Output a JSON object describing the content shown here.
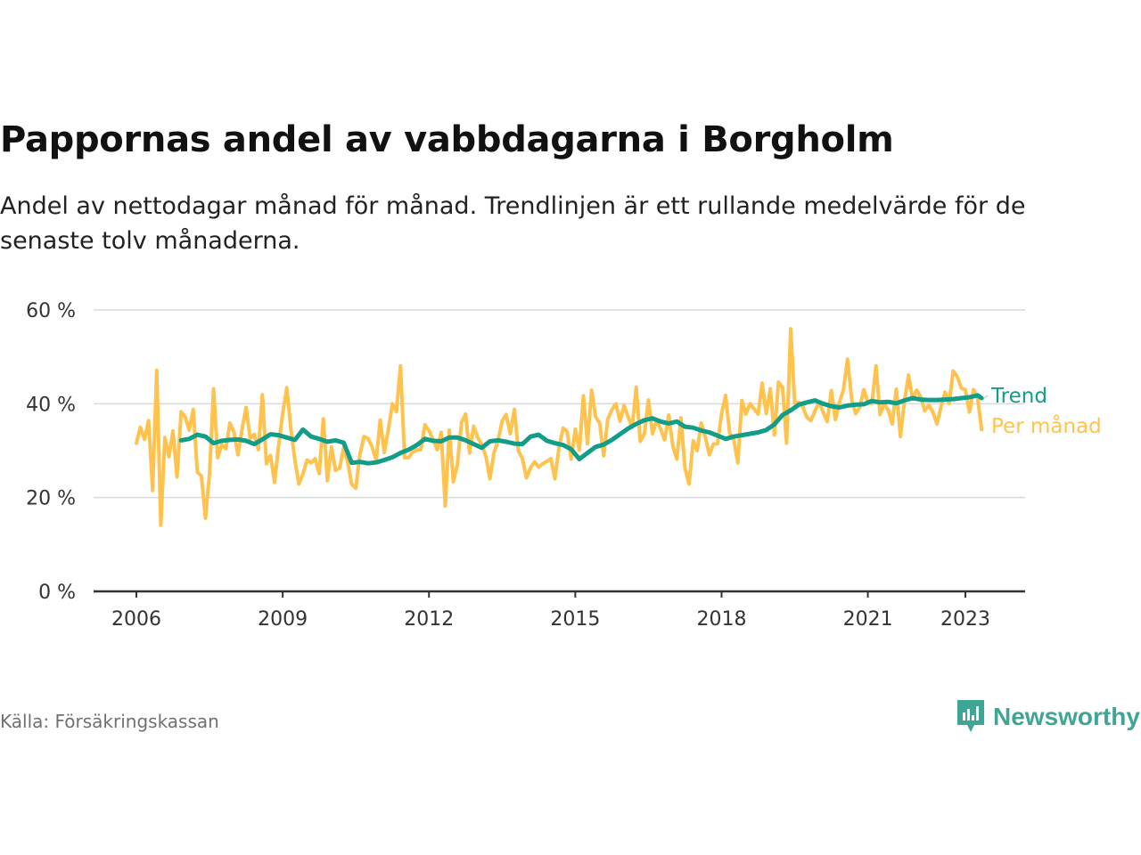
{
  "title": "Pappornas andel av vabbdagarna i Borgholm",
  "subtitle": "Andel av nettodagar månad för månad. Trendlinjen är ett rullande medelvärde för de senaste tolv månaderna.",
  "source": "Källa: Försäkringskassan",
  "brand": {
    "name": "Newsworthy",
    "icon": "newsworthy-logo-icon",
    "color": "#3fa594"
  },
  "chart_data": {
    "type": "line",
    "x_unit": "year",
    "xlim": [
      2006,
      2023.5
    ],
    "ylim": [
      0,
      60
    ],
    "y_ticks": [
      0,
      20,
      40,
      60
    ],
    "y_tick_labels": [
      "0 %",
      "20 %",
      "40 %",
      "60 %"
    ],
    "x_ticks": [
      2006,
      2009,
      2012,
      2015,
      2018,
      2021,
      2023
    ],
    "x_tick_labels": [
      "2006",
      "2009",
      "2012",
      "2015",
      "2018",
      "2021",
      "2023"
    ],
    "grid": true,
    "series": [
      {
        "name": "Per månad",
        "color": "#ffc24d",
        "x": [
          2006.0,
          2006.083,
          2006.167,
          2006.25,
          2006.333,
          2006.417,
          2006.5,
          2006.583,
          2006.667,
          2006.75,
          2006.833,
          2006.917,
          2007.0,
          2007.083,
          2007.167,
          2007.25,
          2007.333,
          2007.417,
          2007.5,
          2007.583,
          2007.667,
          2007.75,
          2007.833,
          2007.917,
          2008.0,
          2008.083,
          2008.167,
          2008.25,
          2008.333,
          2008.417,
          2008.5,
          2008.583,
          2008.667,
          2008.75,
          2008.833,
          2008.917,
          2009.0,
          2009.083,
          2009.167,
          2009.25,
          2009.333,
          2009.417,
          2009.5,
          2009.583,
          2009.667,
          2009.75,
          2009.833,
          2009.917,
          2010.0,
          2010.083,
          2010.167,
          2010.25,
          2010.333,
          2010.417,
          2010.5,
          2010.583,
          2010.667,
          2010.75,
          2010.833,
          2010.917,
          2011.0,
          2011.083,
          2011.167,
          2011.25,
          2011.333,
          2011.417,
          2011.5,
          2011.583,
          2011.667,
          2011.75,
          2011.833,
          2011.917,
          2012.0,
          2012.083,
          2012.167,
          2012.25,
          2012.333,
          2012.417,
          2012.5,
          2012.583,
          2012.667,
          2012.75,
          2012.833,
          2012.917,
          2013.0,
          2013.083,
          2013.167,
          2013.25,
          2013.333,
          2013.417,
          2013.5,
          2013.583,
          2013.667,
          2013.75,
          2013.833,
          2013.917,
          2014.0,
          2014.083,
          2014.167,
          2014.25,
          2014.333,
          2014.417,
          2014.5,
          2014.583,
          2014.667,
          2014.75,
          2014.833,
          2014.917,
          2015.0,
          2015.083,
          2015.167,
          2015.25,
          2015.333,
          2015.417,
          2015.5,
          2015.583,
          2015.667,
          2015.75,
          2015.833,
          2015.917,
          2016.0,
          2016.083,
          2016.167,
          2016.25,
          2016.333,
          2016.417,
          2016.5,
          2016.583,
          2016.667,
          2016.75,
          2016.833,
          2016.917,
          2017.0,
          2017.083,
          2017.167,
          2017.25,
          2017.333,
          2017.417,
          2017.5,
          2017.583,
          2017.667,
          2017.75,
          2017.833,
          2017.917,
          2018.0,
          2018.083,
          2018.167,
          2018.25,
          2018.333,
          2018.417,
          2018.5,
          2018.583,
          2018.667,
          2018.75,
          2018.833,
          2018.917,
          2019.0,
          2019.083,
          2019.167,
          2019.25,
          2019.333,
          2019.417,
          2019.5,
          2019.583,
          2019.667,
          2019.75,
          2019.833,
          2019.917,
          2020.0,
          2020.083,
          2020.167,
          2020.25,
          2020.333,
          2020.417,
          2020.5,
          2020.583,
          2020.667,
          2020.75,
          2020.833,
          2020.917,
          2021.0,
          2021.083,
          2021.167,
          2021.25,
          2021.333,
          2021.417,
          2021.5,
          2021.583,
          2021.667,
          2021.75,
          2021.833,
          2021.917,
          2022.0,
          2022.083,
          2022.167,
          2022.25,
          2022.333,
          2022.417,
          2022.5,
          2022.583,
          2022.667,
          2022.75,
          2022.833,
          2022.917,
          2023.0,
          2023.083,
          2023.167,
          2023.25,
          2023.333
        ],
        "values": [
          31.6,
          35.0,
          32.4,
          36.4,
          21.5,
          47.1,
          14.1,
          32.8,
          28.7,
          34.2,
          24.4,
          38.3,
          37.2,
          34.4,
          38.8,
          25.4,
          24.6,
          15.6,
          25.3,
          43.2,
          28.5,
          31.3,
          30.4,
          35.9,
          34.0,
          29.1,
          34.5,
          39.2,
          32.6,
          33.5,
          30.2,
          41.9,
          27.2,
          29.0,
          23.2,
          31.2,
          37.9,
          43.4,
          34.6,
          28.0,
          22.9,
          25.1,
          28.0,
          27.4,
          28.3,
          25.1,
          36.8,
          23.6,
          30.8,
          25.8,
          26.3,
          30.6,
          27.6,
          22.8,
          22.0,
          29.2,
          33.0,
          32.6,
          30.8,
          28.0,
          36.5,
          29.6,
          34.6,
          40.0,
          38.3,
          48.1,
          28.5,
          28.5,
          29.7,
          30.2,
          30.2,
          35.5,
          34.3,
          32.4,
          30.2,
          33.9,
          18.2,
          34.4,
          23.4,
          27.0,
          36.0,
          37.8,
          29.5,
          35.2,
          32.8,
          31.2,
          28.8,
          24.0,
          29.6,
          32.2,
          36.3,
          37.7,
          33.6,
          38.8,
          30.0,
          28.3,
          24.2,
          26.4,
          27.6,
          26.5,
          27.2,
          27.7,
          28.3,
          24.0,
          30.7,
          34.8,
          34.1,
          28.2,
          34.6,
          30.1,
          41.7,
          31.5,
          42.9,
          37.2,
          35.9,
          28.9,
          36.7,
          38.7,
          40.0,
          36.3,
          39.6,
          37.2,
          35.0,
          43.5,
          32.0,
          33.6,
          40.8,
          33.6,
          36.4,
          34.6,
          32.3,
          37.6,
          31.0,
          28.2,
          37.0,
          26.3,
          22.9,
          32.1,
          30.0,
          35.9,
          32.8,
          29.1,
          31.4,
          31.5,
          37.9,
          41.8,
          33.7,
          32.4,
          27.4,
          40.7,
          37.8,
          40.0,
          38.9,
          37.8,
          44.4,
          37.9,
          43.2,
          33.3,
          44.6,
          43.5,
          31.6,
          56.0,
          40.1,
          40.3,
          39.3,
          37.1,
          36.4,
          38.5,
          40.4,
          38.2,
          36.2,
          42.8,
          36.6,
          40.3,
          43.0,
          49.5,
          40.9,
          37.9,
          39.2,
          43.0,
          40.4,
          40.0,
          48.1,
          37.7,
          40.0,
          38.7,
          35.7,
          43.1,
          33.0,
          40.5,
          46.1,
          41.0,
          42.9,
          41.5,
          38.5,
          39.7,
          38.3,
          35.7,
          39.3,
          42.5,
          40.0,
          47.0,
          45.8,
          43.3,
          43.0,
          38.2,
          43.0,
          41.2,
          34.5
        ]
      },
      {
        "name": "Trend",
        "color": "#119d88",
        "x": [
          2006.917,
          2007.083,
          2007.25,
          2007.417,
          2007.583,
          2007.75,
          2007.917,
          2008.083,
          2008.25,
          2008.417,
          2008.583,
          2008.75,
          2008.917,
          2009.083,
          2009.25,
          2009.417,
          2009.583,
          2009.75,
          2009.917,
          2010.083,
          2010.25,
          2010.417,
          2010.583,
          2010.75,
          2010.917,
          2011.083,
          2011.25,
          2011.417,
          2011.583,
          2011.75,
          2011.917,
          2012.083,
          2012.25,
          2012.417,
          2012.583,
          2012.75,
          2012.917,
          2013.083,
          2013.25,
          2013.417,
          2013.583,
          2013.75,
          2013.917,
          2014.083,
          2014.25,
          2014.417,
          2014.583,
          2014.75,
          2014.917,
          2015.083,
          2015.25,
          2015.417,
          2015.583,
          2015.75,
          2015.917,
          2016.083,
          2016.25,
          2016.417,
          2016.583,
          2016.75,
          2016.917,
          2017.083,
          2017.25,
          2017.417,
          2017.583,
          2017.75,
          2017.917,
          2018.083,
          2018.25,
          2018.417,
          2018.583,
          2018.75,
          2018.917,
          2019.083,
          2019.25,
          2019.417,
          2019.583,
          2019.75,
          2019.917,
          2020.083,
          2020.25,
          2020.417,
          2020.583,
          2020.75,
          2020.917,
          2021.083,
          2021.25,
          2021.417,
          2021.583,
          2021.75,
          2021.917,
          2022.083,
          2022.25,
          2022.417,
          2022.583,
          2022.75,
          2022.917,
          2023.083,
          2023.25,
          2023.333
        ],
        "values": [
          32.2,
          32.5,
          33.4,
          33.0,
          31.6,
          32.1,
          32.3,
          32.4,
          32.1,
          31.4,
          32.4,
          33.5,
          33.3,
          32.8,
          32.3,
          34.5,
          33.0,
          32.5,
          31.9,
          32.2,
          31.7,
          27.4,
          27.6,
          27.3,
          27.5,
          28.0,
          28.6,
          29.5,
          30.2,
          31.2,
          32.5,
          32.1,
          32.0,
          32.8,
          32.8,
          32.2,
          31.4,
          30.6,
          32.0,
          32.2,
          31.9,
          31.5,
          31.4,
          33.0,
          33.4,
          32.1,
          31.6,
          31.2,
          30.3,
          28.2,
          29.5,
          30.8,
          31.3,
          32.3,
          33.5,
          34.7,
          35.7,
          36.5,
          36.9,
          36.2,
          35.8,
          36.2,
          35.1,
          34.9,
          34.3,
          33.9,
          33.2,
          32.5,
          33.0,
          33.3,
          33.6,
          33.9,
          34.4,
          35.6,
          37.6,
          38.6,
          39.8,
          40.3,
          40.7,
          40.0,
          39.5,
          39.2,
          39.6,
          39.8,
          39.9,
          40.6,
          40.3,
          40.4,
          40.1,
          40.7,
          41.2,
          40.9,
          40.8,
          40.8,
          40.9,
          41.0,
          41.2,
          41.4,
          41.8,
          41.2
        ]
      }
    ],
    "series_labels": [
      "Trend",
      "Per månad"
    ]
  }
}
